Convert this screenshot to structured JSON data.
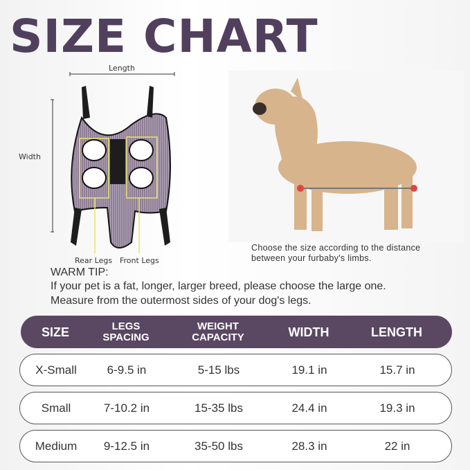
{
  "title": "SIZE CHART",
  "diagram": {
    "length_label": "Length",
    "width_label": "Width",
    "rear_legs_label": "Rear Legs",
    "front_legs_label": "Front Legs"
  },
  "caption": {
    "line1": "Choose the size according to the distance",
    "line2": "between your furbaby's limbs."
  },
  "warm_tip": {
    "heading": "WARM TIP:",
    "line1": "If your pet is a fat, longer, larger breed, please choose the large one.",
    "line2": "Measure from the outermost sides of your dog's legs."
  },
  "colors": {
    "brand_purple": "#51405d",
    "header_bg": "#5a4762",
    "highlight_yellow": "#e8e46a",
    "measure_red": "#e0453f"
  },
  "table": {
    "headers": [
      {
        "l1": "SIZE",
        "l2": ""
      },
      {
        "l1": "LEGS",
        "l2": "SPACING"
      },
      {
        "l1": "WEIGHT",
        "l2": "CAPACITY"
      },
      {
        "l1": "WIDTH",
        "l2": ""
      },
      {
        "l1": "LENGTH",
        "l2": ""
      }
    ],
    "rows": [
      [
        "X-Small",
        "6-9.5 in",
        "5-15 lbs",
        "19.1 in",
        "15.7 in"
      ],
      [
        "Small",
        "7-10.2 in",
        "15-35 lbs",
        "24.4 in",
        "19.3 in"
      ],
      [
        "Medium",
        "9-12.5 in",
        "35-50 lbs",
        "28.3 in",
        "22 in"
      ]
    ]
  }
}
